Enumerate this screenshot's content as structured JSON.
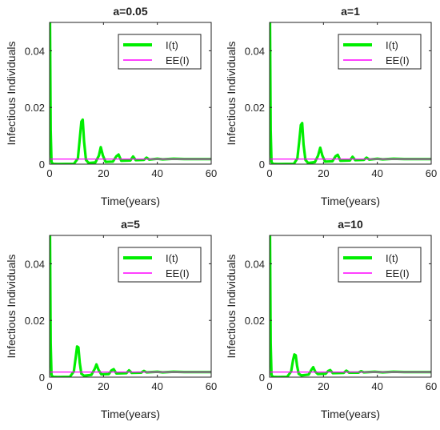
{
  "figure": {
    "shared": {
      "xlabel": "Time(years)",
      "ylabel": "Infectious Individuals",
      "xlim": [
        0,
        60
      ],
      "ylim": [
        0,
        0.05
      ],
      "xticks": [
        0,
        20,
        40,
        60
      ],
      "yticks": [
        0,
        0.02,
        0.04
      ],
      "ytick_labels": [
        "0",
        "0.02",
        "0.04"
      ],
      "legend": {
        "placement": "top-right",
        "entries": [
          "I(t)",
          "EE(I)"
        ]
      },
      "colors": {
        "I": "#00ee00",
        "EE": "#ff00ff"
      },
      "grid": false,
      "ee_value": 0.0018
    }
  },
  "chart_data": [
    {
      "type": "line",
      "title": "a=0.05",
      "xlabel": "Time(years)",
      "ylabel": "Infectious Individuals",
      "xlim": [
        0,
        60
      ],
      "ylim": [
        0,
        0.05
      ],
      "legend": "top-right",
      "series": [
        {
          "name": "I(t)",
          "x": [
            0,
            0.15,
            0.4,
            0.7,
            1.2,
            3,
            9,
            10.5,
            11.2,
            11.8,
            12.3,
            12.8,
            13.5,
            14.5,
            17,
            18.3,
            19,
            19.8,
            20.8,
            23.5,
            24.8,
            25.6,
            26.6,
            30,
            31,
            32,
            35,
            36,
            37,
            40,
            42,
            46,
            50,
            55,
            60
          ],
          "y": [
            0.05,
            0.05,
            0.012,
            0.0008,
            0.0001,
            5e-05,
            0.0001,
            0.002,
            0.009,
            0.015,
            0.0157,
            0.008,
            0.0015,
            0.0004,
            0.0006,
            0.003,
            0.006,
            0.003,
            0.0008,
            0.0009,
            0.0028,
            0.0034,
            0.0012,
            0.0013,
            0.0027,
            0.0014,
            0.0015,
            0.0023,
            0.0016,
            0.0019,
            0.0017,
            0.0019,
            0.0018,
            0.0018,
            0.0018
          ]
        },
        {
          "name": "EE(I)",
          "x": [
            0,
            60
          ],
          "y": [
            0.0018,
            0.0018
          ]
        }
      ]
    },
    {
      "type": "line",
      "title": "a=1",
      "xlabel": "Time(years)",
      "ylabel": "Infectious Individuals",
      "xlim": [
        0,
        60
      ],
      "ylim": [
        0,
        0.05
      ],
      "legend": "top-right",
      "series": [
        {
          "name": "I(t)",
          "x": [
            0,
            0.15,
            0.4,
            0.7,
            1.2,
            3,
            9,
            10.3,
            11,
            11.6,
            12.1,
            12.6,
            13.3,
            14.3,
            16.8,
            18,
            18.8,
            19.6,
            20.6,
            23.3,
            24.5,
            25.3,
            26.3,
            29.8,
            30.8,
            31.8,
            35,
            36,
            37,
            40,
            42,
            46,
            50,
            55,
            60
          ],
          "y": [
            0.05,
            0.05,
            0.012,
            0.0008,
            0.0001,
            5e-05,
            0.0001,
            0.002,
            0.008,
            0.0138,
            0.0145,
            0.007,
            0.0015,
            0.0004,
            0.0007,
            0.003,
            0.0058,
            0.003,
            0.0009,
            0.001,
            0.0028,
            0.0033,
            0.0012,
            0.0013,
            0.0026,
            0.0014,
            0.0015,
            0.0023,
            0.0016,
            0.0019,
            0.0017,
            0.0019,
            0.0018,
            0.0018,
            0.0018
          ]
        },
        {
          "name": "EE(I)",
          "x": [
            0,
            60
          ],
          "y": [
            0.0018,
            0.0018
          ]
        }
      ]
    },
    {
      "type": "line",
      "title": "a=5",
      "xlabel": "Time(years)",
      "ylabel": "Infectious Individuals",
      "xlim": [
        0,
        60
      ],
      "ylim": [
        0,
        0.05
      ],
      "legend": "top-right",
      "series": [
        {
          "name": "I(t)",
          "x": [
            0,
            0.15,
            0.4,
            0.7,
            1.2,
            3,
            7.5,
            9,
            9.7,
            10.2,
            10.7,
            11.2,
            11.8,
            12.8,
            15.5,
            16.8,
            17.4,
            18.2,
            19.2,
            22,
            23,
            23.8,
            24.8,
            28.5,
            29.5,
            30.5,
            34,
            35,
            36,
            40,
            42,
            46,
            50,
            55,
            60
          ],
          "y": [
            0.05,
            0.05,
            0.012,
            0.0008,
            0.0001,
            5e-05,
            0.0001,
            0.002,
            0.007,
            0.0108,
            0.0105,
            0.005,
            0.0012,
            0.0005,
            0.0008,
            0.003,
            0.0045,
            0.0025,
            0.001,
            0.0011,
            0.0024,
            0.0028,
            0.0013,
            0.0014,
            0.0024,
            0.0015,
            0.0016,
            0.0022,
            0.0017,
            0.0019,
            0.0017,
            0.0019,
            0.0018,
            0.0018,
            0.0018
          ]
        },
        {
          "name": "EE(I)",
          "x": [
            0,
            60
          ],
          "y": [
            0.0018,
            0.0018
          ]
        }
      ]
    },
    {
      "type": "line",
      "title": "a=10",
      "xlabel": "Time(years)",
      "ylabel": "Infectious Individuals",
      "xlim": [
        0,
        60
      ],
      "ylim": [
        0,
        0.05
      ],
      "legend": "top-right",
      "series": [
        {
          "name": "I(t)",
          "x": [
            0,
            0.15,
            0.4,
            0.7,
            1.2,
            3,
            6.5,
            8,
            8.7,
            9.2,
            9.7,
            10.2,
            10.8,
            11.8,
            14.5,
            15.6,
            16.2,
            16.9,
            17.9,
            20.8,
            21.8,
            22.5,
            23.5,
            27.5,
            28.5,
            29.5,
            33,
            34,
            35,
            39,
            42,
            46,
            50,
            55,
            60
          ],
          "y": [
            0.05,
            0.05,
            0.012,
            0.0008,
            0.0001,
            5e-05,
            0.0001,
            0.002,
            0.006,
            0.008,
            0.0077,
            0.004,
            0.0012,
            0.0006,
            0.0009,
            0.0027,
            0.0035,
            0.002,
            0.0011,
            0.0012,
            0.0022,
            0.0025,
            0.0014,
            0.0015,
            0.0023,
            0.0016,
            0.0016,
            0.0021,
            0.0017,
            0.0019,
            0.0017,
            0.0019,
            0.0018,
            0.0018,
            0.0018
          ]
        },
        {
          "name": "EE(I)",
          "x": [
            0,
            60
          ],
          "y": [
            0.0018,
            0.0018
          ]
        }
      ]
    }
  ]
}
